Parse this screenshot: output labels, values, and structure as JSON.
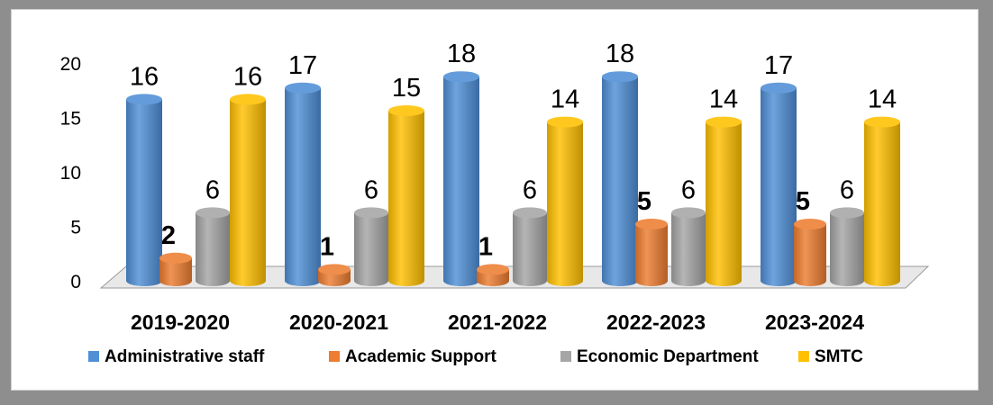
{
  "chart_data": {
    "type": "bar",
    "categories": [
      "2019-2020",
      "2020-2021",
      "2021-2022",
      "2022-2023",
      "2023-2024"
    ],
    "series": [
      {
        "name": "Administrative staff",
        "values": [
          16,
          17,
          18,
          18,
          17
        ],
        "color": "#4f8fd6",
        "bold_labels": false
      },
      {
        "name": "Academic Support",
        "values": [
          2,
          1,
          1,
          5,
          5
        ],
        "color": "#ed7d31",
        "bold_labels": true
      },
      {
        "name": "Economic Department",
        "values": [
          6,
          6,
          6,
          6,
          6
        ],
        "color": "#a5a5a5",
        "bold_labels": false
      },
      {
        "name": "SMTC",
        "values": [
          16,
          15,
          14,
          14,
          14
        ],
        "color": "#ffc000",
        "bold_labels": false
      }
    ],
    "y_ticks": [
      "0",
      "5",
      "10",
      "15",
      "20"
    ],
    "ylim": [
      0,
      20
    ],
    "grid": false,
    "legend_position": "bottom"
  }
}
